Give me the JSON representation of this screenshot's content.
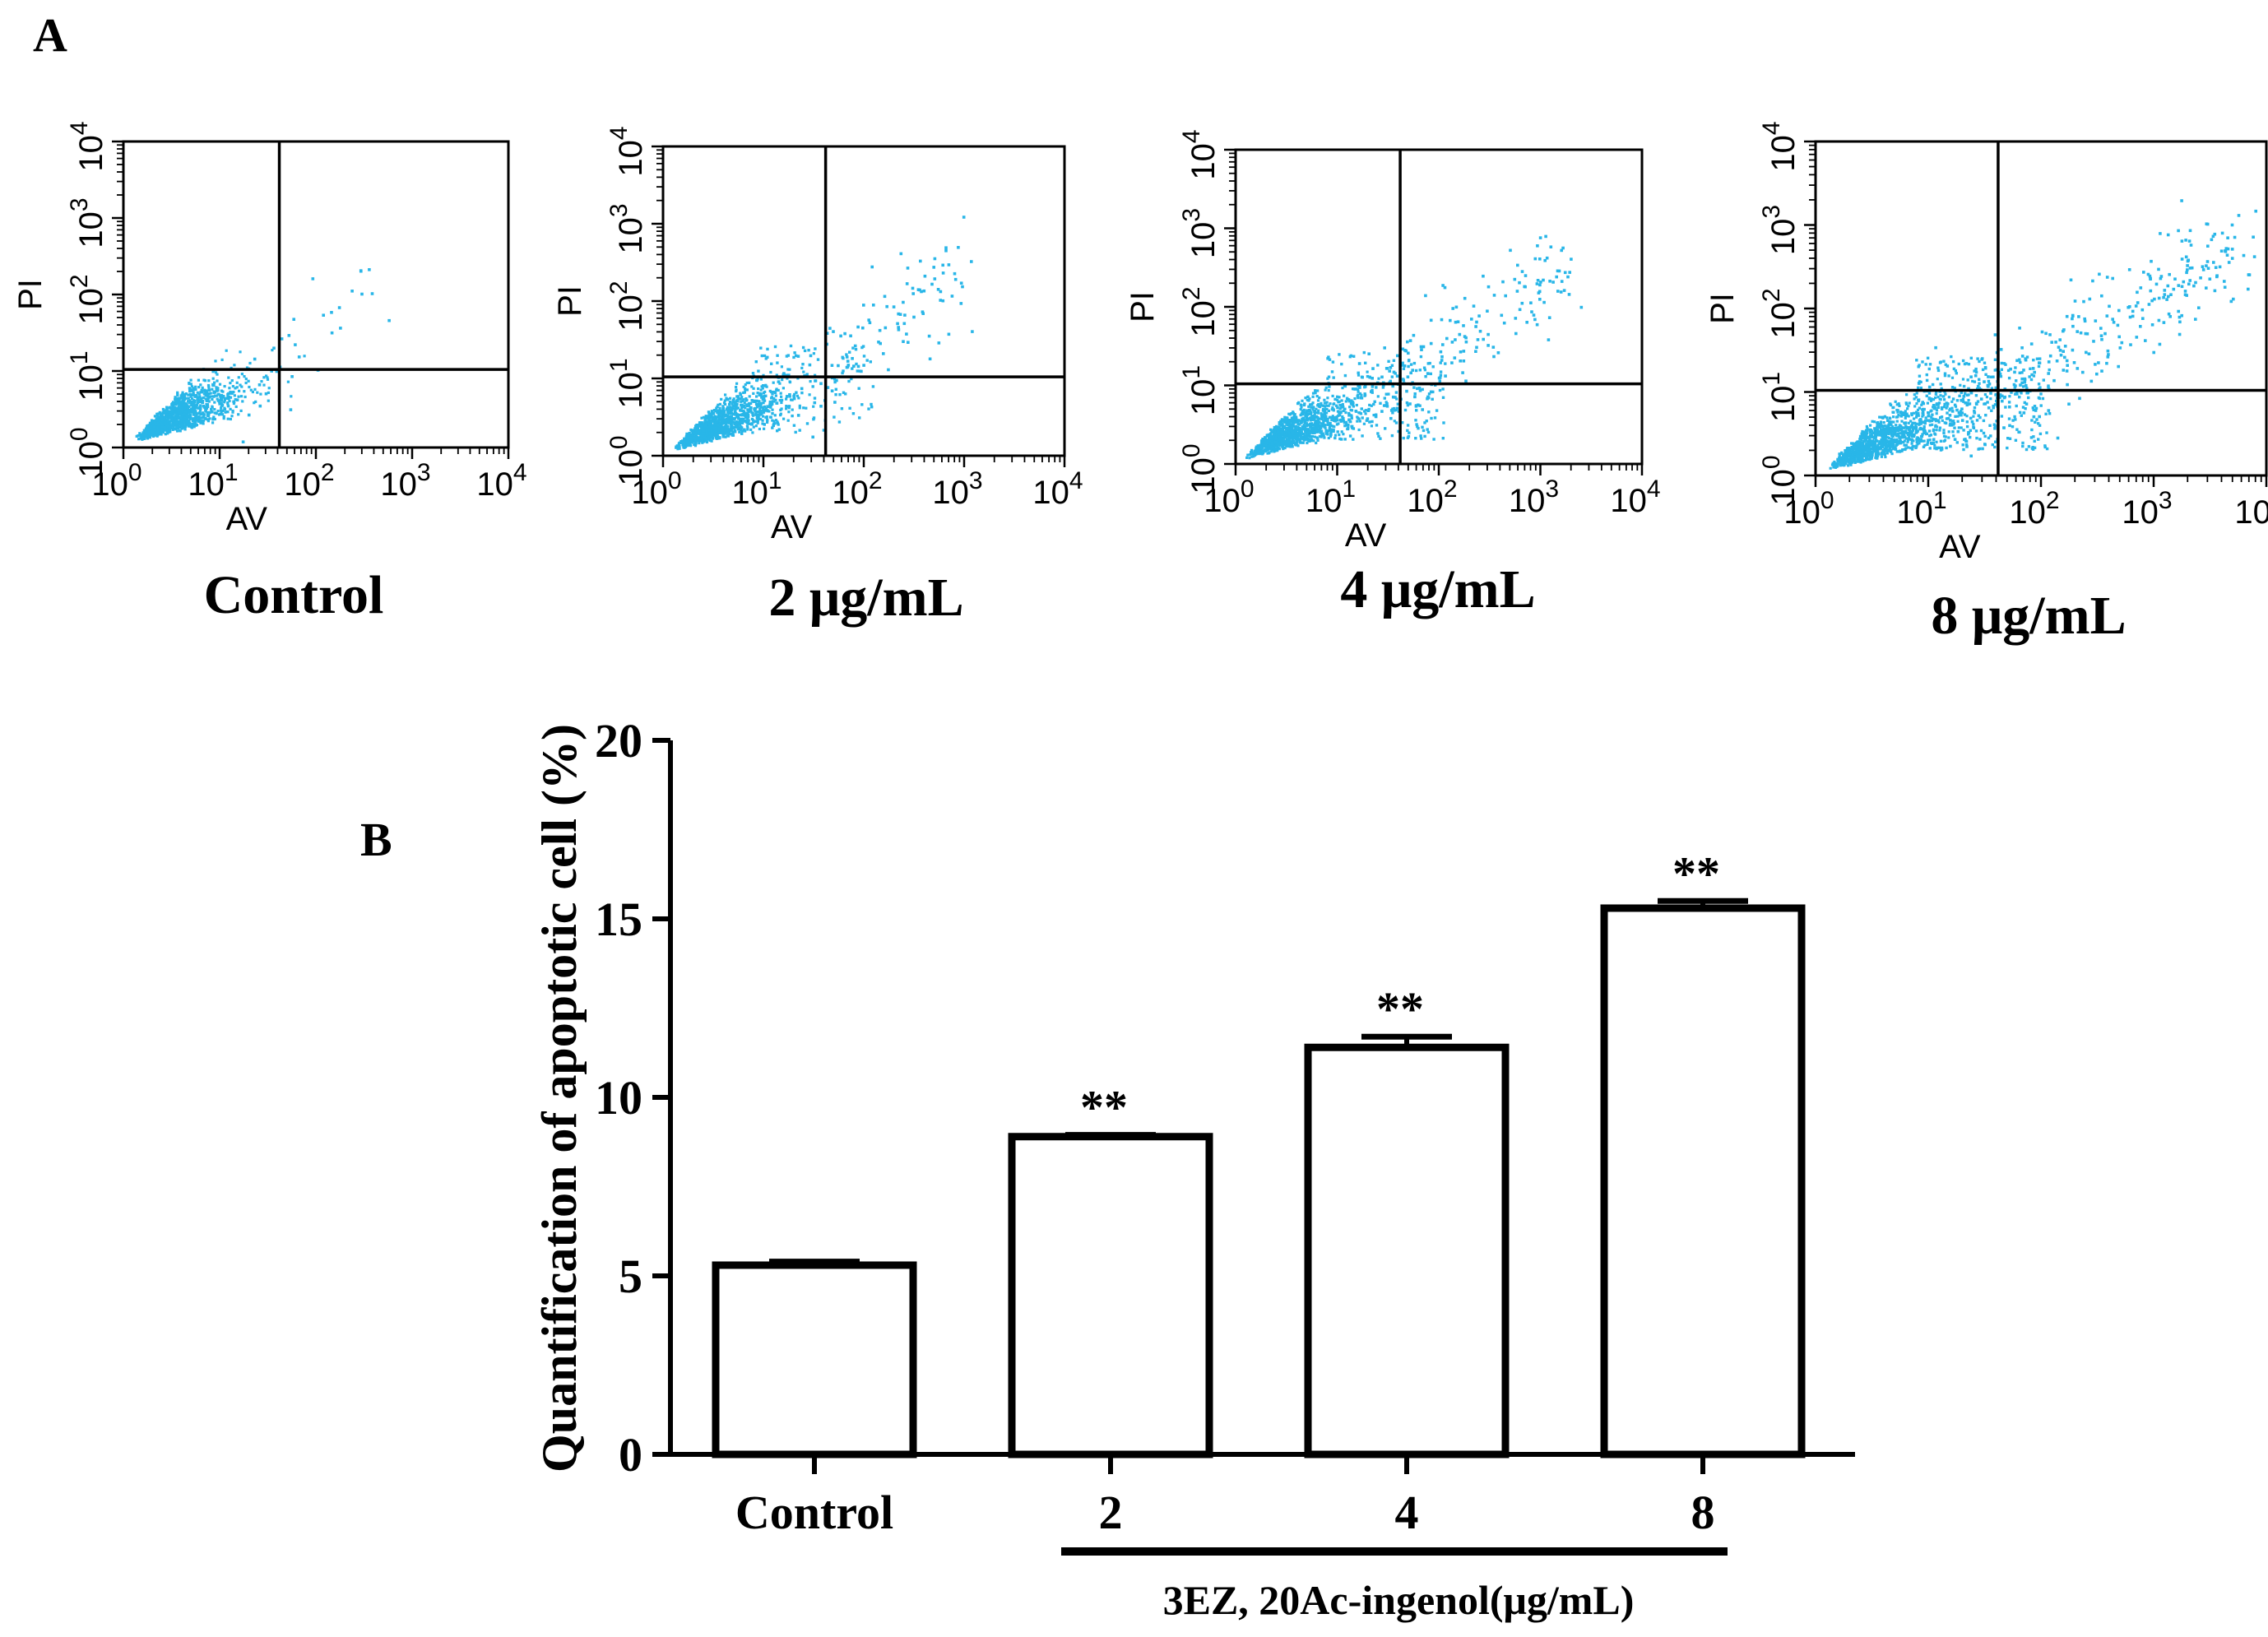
{
  "panel_a": {
    "label": "A",
    "x_axis_label": "AV",
    "y_axis_label": "PI",
    "tick_base": "10",
    "tick_exponents": [
      "0",
      "1",
      "2",
      "3",
      "4"
    ],
    "dot_color": "#29b6e8",
    "plots": [
      {
        "title": "Control",
        "spread": 0.0
      },
      {
        "title": "2 μg/mL",
        "spread": 0.3
      },
      {
        "title": "4 μg/mL",
        "spread": 0.55
      },
      {
        "title": "8 μg/mL",
        "spread": 1.0
      }
    ]
  },
  "chart_data": {
    "type": "bar",
    "panel_label": "B",
    "categories": [
      "Control",
      "2",
      "4",
      "8"
    ],
    "values": [
      5.3,
      8.9,
      11.4,
      15.3
    ],
    "errors": [
      0.1,
      0.05,
      0.3,
      0.2
    ],
    "annotations": [
      "",
      "**",
      "**",
      "**"
    ],
    "ylabel": "Quantification of apoptotic cell (%)",
    "xlabel": "3EZ, 20Ac-ingenol(μg/mL)",
    "ylim": [
      0,
      20
    ],
    "yticks": [
      0,
      5,
      10,
      15,
      20
    ],
    "grid": false,
    "bar_fill": "#ffffff",
    "bar_stroke": "#000000"
  }
}
